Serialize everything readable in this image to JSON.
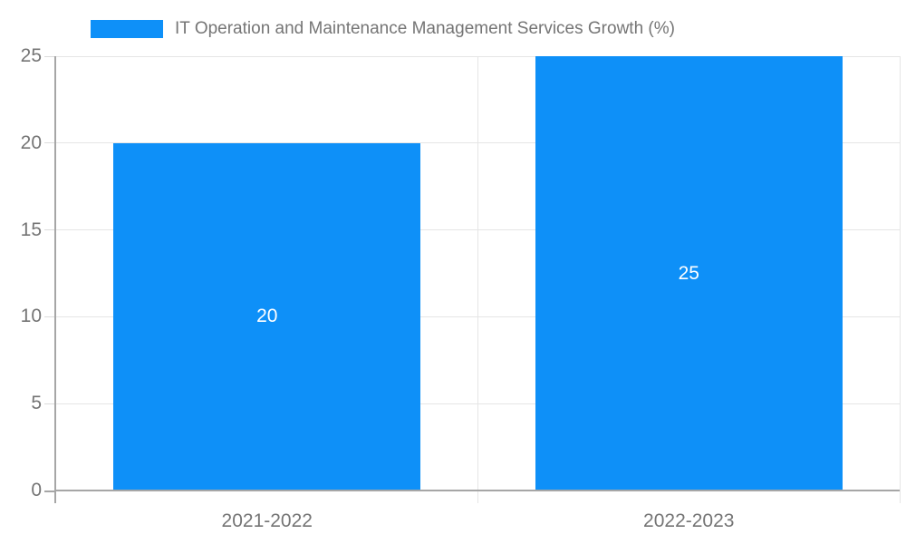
{
  "legend": {
    "label": "IT Operation and Maintenance Management Services Growth (%)"
  },
  "chart_data": {
    "type": "bar",
    "title": "IT Operation and Maintenance Management Services Growth (%)",
    "categories": [
      "2021-2022",
      "2022-2023"
    ],
    "series": [
      {
        "name": "IT Operation and Maintenance Management Services Growth (%)",
        "values": [
          20,
          25
        ]
      }
    ],
    "data_labels": [
      "20",
      "25"
    ],
    "xlabel": "",
    "ylabel": "",
    "ylim": [
      0,
      25
    ],
    "yticks": [
      0,
      5,
      10,
      15,
      20,
      25
    ],
    "grid": true,
    "legend_position": "top-left",
    "colors": {
      "bar": "#0e90f8",
      "grid_line": "#e5e5e5",
      "axis_line": "#a6a6a6",
      "tick_label": "#757575",
      "legend_text": "#757575",
      "data_label": "#ffffff",
      "background": "#ffffff"
    }
  }
}
